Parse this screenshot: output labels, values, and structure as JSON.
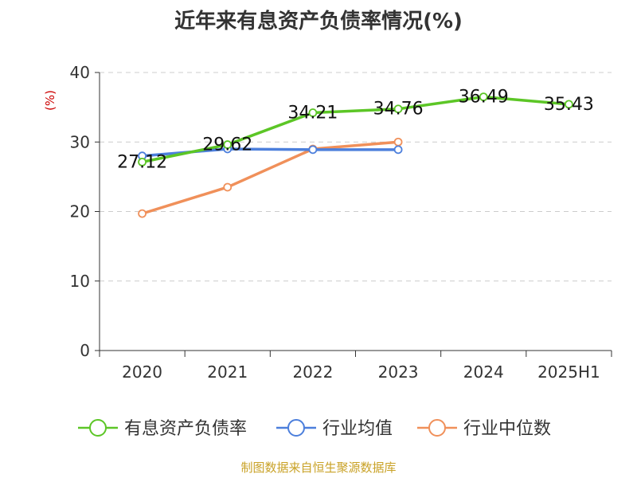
{
  "chart_data": {
    "type": "line",
    "title": "近年来有息资产负债率情况(%)",
    "ylabel": "(%)",
    "categories": [
      "2020",
      "2021",
      "2022",
      "2023",
      "2024",
      "2025H1"
    ],
    "yticks": [
      "0",
      "10",
      "20",
      "30",
      "40"
    ],
    "ylim": [
      0,
      40
    ],
    "grid": true,
    "legend_position": "bottom",
    "series": [
      {
        "name": "有息资产负债率",
        "color": "#5cc626",
        "values": [
          27.12,
          29.62,
          34.21,
          34.76,
          36.49,
          35.43
        ],
        "labels": [
          "27.12",
          "29.62",
          "34.21",
          "34.76",
          "36.49",
          "35.43"
        ]
      },
      {
        "name": "行业均值",
        "color": "#4c7fdc",
        "values": [
          28.0,
          29.0,
          28.9,
          28.9,
          null,
          null
        ]
      },
      {
        "name": "行业中位数",
        "color": "#f0905a",
        "values": [
          19.7,
          23.5,
          29.0,
          30.0,
          null,
          null
        ]
      }
    ]
  },
  "source_text": "制图数据来自恒生聚源数据库"
}
